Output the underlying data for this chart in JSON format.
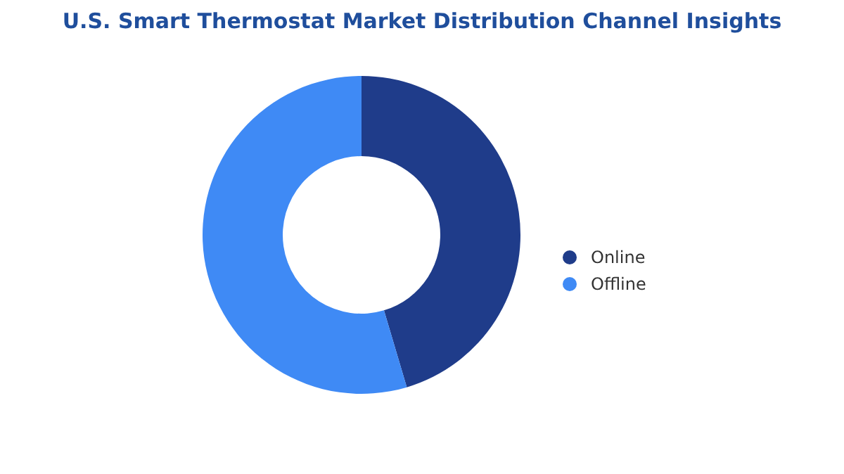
{
  "chart_data": {
    "type": "donut",
    "title": "U.S. Smart Thermostat Market Distribution Channel Insights",
    "categories": [
      "Online",
      "Offline"
    ],
    "values": [
      45.4,
      54.6
    ],
    "colors": [
      "#1f3c8a",
      "#3f8af5"
    ],
    "legend": "right"
  }
}
